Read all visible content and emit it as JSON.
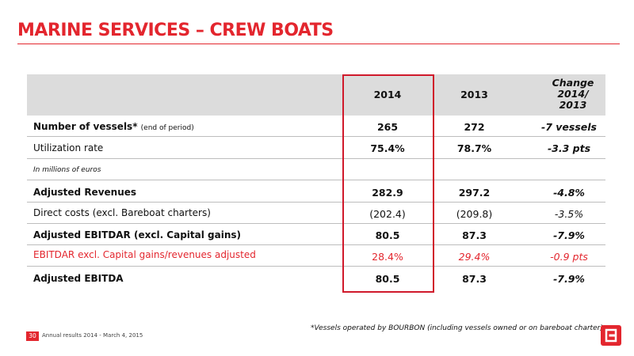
{
  "title": "MARINE SERVICES – CREW BOATS",
  "table": {
    "headers": {
      "col_2014": "2014",
      "col_2013": "2013",
      "col_change": [
        "Change",
        "2014/",
        "2013"
      ]
    },
    "rows": [
      {
        "label": "Number of vessels*",
        "label_note": "(end of period)",
        "v2014": "265",
        "v2013": "272",
        "change": "-7 vessels"
      },
      {
        "label": "Utilization rate",
        "v2014": "75.4%",
        "v2013": "78.7%",
        "change": "-3.3 pts"
      },
      {
        "label": "In millions of euros"
      },
      {
        "label": "Adjusted Revenues",
        "v2014": "282.9",
        "v2013": "297.2",
        "change": "-4.8%"
      },
      {
        "label": "Direct costs (excl. Bareboat charters)",
        "v2014": "(202.4)",
        "v2013": "(209.8)",
        "change": "-3.5%"
      },
      {
        "label": "Adjusted EBITDAR (excl. Capital gains)",
        "v2014": "80.5",
        "v2013": "87.3",
        "change": "-7.9%"
      },
      {
        "label": "EBITDAR excl. Capital gains/revenues adjusted",
        "v2014": "28.4%",
        "v2013": "29.4%",
        "change": "-0.9 pts"
      },
      {
        "label": "Adjusted EBITDA",
        "v2014": "80.5",
        "v2013": "87.3",
        "change": "-7.9%"
      }
    ]
  },
  "footnote": "*Vessels operated by BOURBON (including vessels owned or on bareboat charter)",
  "footer": {
    "page_number": "30",
    "text": "Annual results 2014 - March 4, 2015"
  },
  "colors": {
    "accent": "#e3262e",
    "header_band": "#dcdcdc"
  },
  "icons": {
    "logo": "bourbon-logo-icon"
  }
}
